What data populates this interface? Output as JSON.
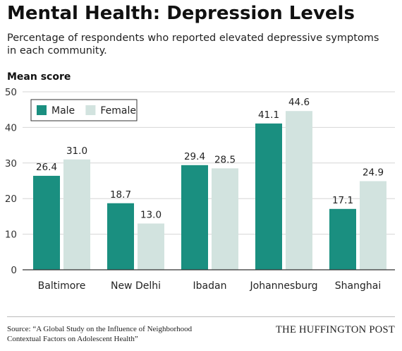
{
  "title": "Mental Health: Depression Levels",
  "subtitle": "Percentage of respondents who reported elevated depressive symptoms in each community.",
  "source": "Source: “A Global Study on the Influence of Neighborhood Contextual Factors on Adolescent Health”",
  "brand": "THE HUFFINGTON POST",
  "chart_data": {
    "type": "bar",
    "ylabel": "Mean score",
    "xlabel": "",
    "ylim": [
      0,
      50
    ],
    "yticks": [
      0,
      10,
      20,
      30,
      40,
      50
    ],
    "grid": true,
    "legend_position": "top-left",
    "categories": [
      "Baltimore",
      "New Delhi",
      "Ibadan",
      "Johannesburg",
      "Shanghai"
    ],
    "series": [
      {
        "name": "Male",
        "color": "#1a8f80",
        "values": [
          26.4,
          18.7,
          29.4,
          41.1,
          17.1
        ],
        "labels": [
          "26.4",
          "18.7",
          "29.4",
          "41.1",
          "17.1"
        ]
      },
      {
        "name": "Female",
        "color": "#d2e3df",
        "values": [
          31.0,
          13.0,
          28.5,
          44.6,
          24.9
        ],
        "labels": [
          "31.0",
          "13.0",
          "28.5",
          "44.6",
          "24.9"
        ]
      }
    ]
  }
}
